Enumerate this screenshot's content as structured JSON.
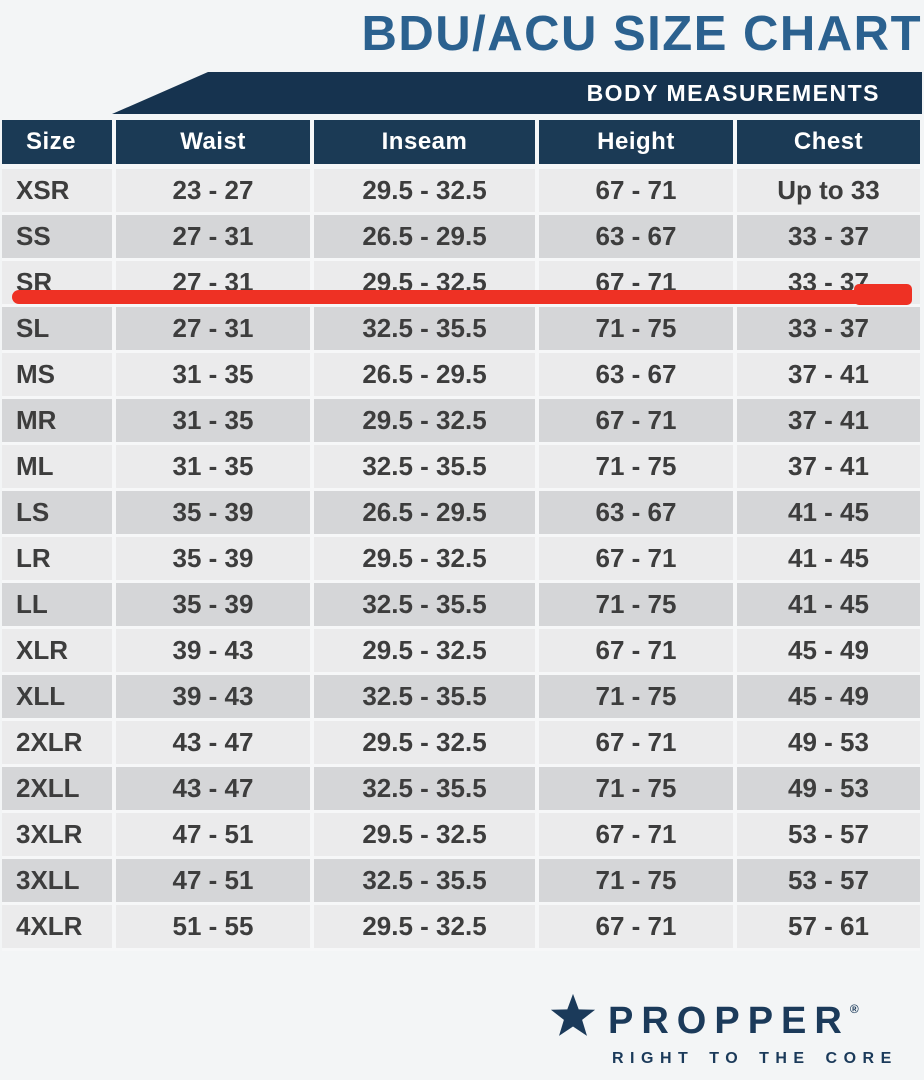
{
  "title": "BDU/ACU SIZE CHART",
  "banner": {
    "label": "BODY MEASUREMENTS"
  },
  "table": {
    "columns": [
      "Size",
      "Waist",
      "Inseam",
      "Height",
      "Chest"
    ],
    "rows": [
      {
        "size": "XSR",
        "waist": "23 - 27",
        "inseam": "29.5 - 32.5",
        "height": "67 - 71",
        "chest": "Up to 33"
      },
      {
        "size": "SS",
        "waist": "27 - 31",
        "inseam": "26.5 - 29.5",
        "height": "63 - 67",
        "chest": "33 - 37"
      },
      {
        "size": "SR",
        "waist": "27 - 31",
        "inseam": "29.5 - 32.5",
        "height": "67 - 71",
        "chest": "33 - 37"
      },
      {
        "size": "SL",
        "waist": "27 - 31",
        "inseam": "32.5 - 35.5",
        "height": "71 - 75",
        "chest": "33 - 37"
      },
      {
        "size": "MS",
        "waist": "31 - 35",
        "inseam": "26.5 - 29.5",
        "height": "63 - 67",
        "chest": "37 - 41"
      },
      {
        "size": "MR",
        "waist": "31 - 35",
        "inseam": "29.5 - 32.5",
        "height": "67 - 71",
        "chest": "37 - 41"
      },
      {
        "size": "ML",
        "waist": "31 - 35",
        "inseam": "32.5 - 35.5",
        "height": "71 - 75",
        "chest": "37 - 41"
      },
      {
        "size": "LS",
        "waist": "35 - 39",
        "inseam": "26.5 - 29.5",
        "height": "63 - 67",
        "chest": "41 - 45"
      },
      {
        "size": "LR",
        "waist": "35 - 39",
        "inseam": "29.5 - 32.5",
        "height": "67 - 71",
        "chest": "41 - 45"
      },
      {
        "size": "LL",
        "waist": "35 - 39",
        "inseam": "32.5 - 35.5",
        "height": "71 - 75",
        "chest": "41 - 45"
      },
      {
        "size": "XLR",
        "waist": "39 - 43",
        "inseam": "29.5 - 32.5",
        "height": "67 - 71",
        "chest": "45 - 49"
      },
      {
        "size": "XLL",
        "waist": "39 - 43",
        "inseam": "32.5 - 35.5",
        "height": "71 - 75",
        "chest": "45 - 49"
      },
      {
        "size": "2XLR",
        "waist": "43 - 47",
        "inseam": "29.5 - 32.5",
        "height": "67 - 71",
        "chest": "49 - 53"
      },
      {
        "size": "2XLL",
        "waist": "43 - 47",
        "inseam": "32.5 - 35.5",
        "height": "71 - 75",
        "chest": "49 - 53"
      },
      {
        "size": "3XLR",
        "waist": "47 - 51",
        "inseam": "29.5 - 32.5",
        "height": "67 - 71",
        "chest": "53 - 57"
      },
      {
        "size": "3XLL",
        "waist": "47 - 51",
        "inseam": "32.5 - 35.5",
        "height": "71 - 75",
        "chest": "53 - 57"
      },
      {
        "size": "4XLR",
        "waist": "51 - 55",
        "inseam": "29.5 - 32.5",
        "height": "67 - 71",
        "chest": "57 - 61"
      }
    ],
    "highlighted_size": "SR"
  },
  "logo": {
    "brand": "PROPPER",
    "registered": "®",
    "tagline": "RIGHT TO THE CORE"
  },
  "colors": {
    "title_blue": "#2b618f",
    "header_navy": "#1b3a55",
    "banner_navy": "#16334f",
    "row_light": "#ebebec",
    "row_dark": "#d5d6d8",
    "highlight_red": "#ee3124",
    "logo_navy": "#1b3a5a"
  }
}
